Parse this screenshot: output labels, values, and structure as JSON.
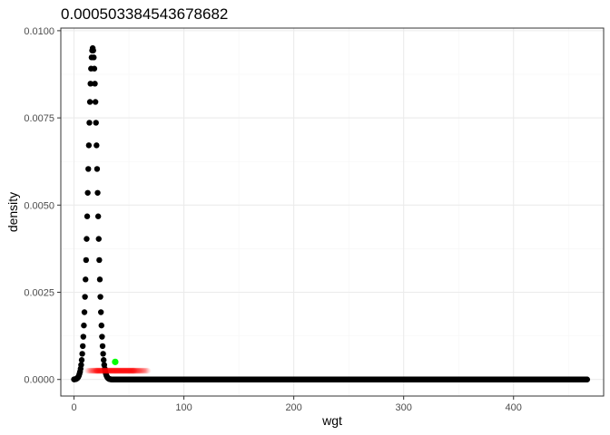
{
  "chart_data": {
    "type": "scatter",
    "title": "0.000503384543678682",
    "xlabel": "wgt",
    "ylabel": "density",
    "xlim": [
      -12,
      482
    ],
    "ylim": [
      -0.000475,
      0.010075
    ],
    "x_ticks": [
      0,
      100,
      200,
      300,
      400
    ],
    "x_tick_labels": [
      "0",
      "100",
      "200",
      "300",
      "400"
    ],
    "y_ticks": [
      0,
      0.0025,
      0.005,
      0.0075,
      0.01
    ],
    "y_tick_labels": [
      "0.0000",
      "0.0025",
      "0.0050",
      "0.0075",
      "0.0100"
    ],
    "grid": true,
    "colors": {
      "density_curve": "#000000",
      "sample_points": "#ff0000",
      "observed_point": "#00ff00",
      "grid_major": "#ebebeb",
      "grid_minor": "#f5f5f5",
      "panel_border": "#333333"
    },
    "series": [
      {
        "kind": "density_curve",
        "distribution": {
          "shape": "gaussian",
          "mean": 17,
          "sd": 4.2,
          "peak": 0.0095
        },
        "x_range": [
          0,
          467
        ],
        "x_step": 0.5
      },
      {
        "kind": "sample_points",
        "y": 0.00025,
        "x_range": [
          12,
          68
        ],
        "x_core_range": [
          20,
          55
        ]
      },
      {
        "kind": "observed_point",
        "x": 37.5,
        "y": 0.000503384543678682
      }
    ]
  }
}
